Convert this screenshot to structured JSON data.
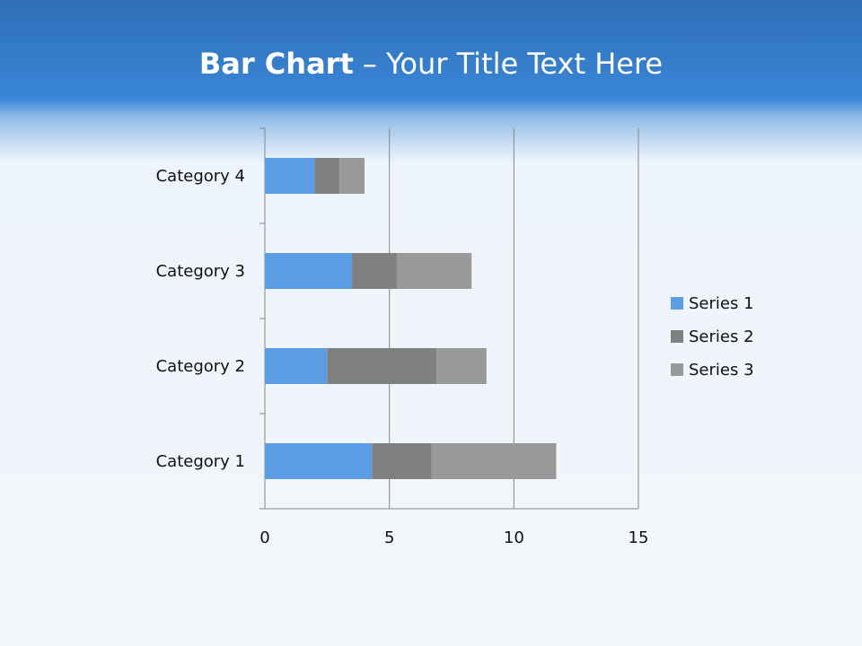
{
  "title": {
    "bold": "Bar Chart",
    "dash": " – ",
    "rest": "Your Title Text Here"
  },
  "chart_data": {
    "type": "bar",
    "orientation": "horizontal",
    "stacked": true,
    "categories": [
      "Category 1",
      "Category 2",
      "Category 3",
      "Category 4"
    ],
    "series": [
      {
        "name": "Series 1",
        "values": [
          4.3,
          2.5,
          3.5,
          2
        ],
        "color": "#5b9ee3"
      },
      {
        "name": "Series 2",
        "values": [
          2.4,
          4.4,
          1.8,
          1
        ],
        "color": "#808080"
      },
      {
        "name": "Series 3",
        "values": [
          5,
          2,
          3,
          1
        ],
        "color": "#999999"
      }
    ],
    "xlim": [
      0,
      15
    ],
    "xticks": [
      0,
      5,
      10,
      15
    ],
    "grid": "vertical",
    "legend": "right"
  }
}
